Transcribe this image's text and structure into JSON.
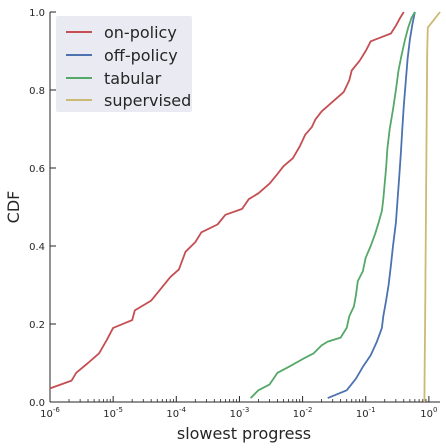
{
  "chart_data": {
    "type": "line",
    "title": "",
    "xlabel": "slowest progress",
    "ylabel": "CDF",
    "xscale": "log",
    "xlim": [
      1e-06,
      1.5
    ],
    "ylim": [
      0,
      1
    ],
    "grid": false,
    "legend_position": "top-left",
    "x_ticks": [
      {
        "value": 1e-06,
        "base": "10",
        "exp": "-6"
      },
      {
        "value": 1e-05,
        "base": "10",
        "exp": "-5"
      },
      {
        "value": 0.0001,
        "base": "10",
        "exp": "-4"
      },
      {
        "value": 0.001,
        "base": "10",
        "exp": "-3"
      },
      {
        "value": 0.01,
        "base": "10",
        "exp": "-2"
      },
      {
        "value": 0.1,
        "base": "10",
        "exp": "-1"
      },
      {
        "value": 1,
        "base": "10",
        "exp": "0"
      }
    ],
    "y_ticks": [
      {
        "value": 0.0,
        "label": "0.0"
      },
      {
        "value": 0.2,
        "label": "0.2"
      },
      {
        "value": 0.4,
        "label": "0.4"
      },
      {
        "value": 0.6,
        "label": "0.6"
      },
      {
        "value": 0.8,
        "label": "0.8"
      },
      {
        "value": 1.0,
        "label": "1.0"
      }
    ],
    "series": [
      {
        "name": "on-policy",
        "color": "#c44e52",
        "points": [
          [
            1e-06,
            0.035
          ],
          [
            2.2e-06,
            0.055
          ],
          [
            2.6e-06,
            0.075
          ],
          [
            4e-06,
            0.1
          ],
          [
            6e-06,
            0.125
          ],
          [
            8e-06,
            0.16
          ],
          [
            1e-05,
            0.19
          ],
          [
            2e-05,
            0.21
          ],
          [
            2.2e-05,
            0.235
          ],
          [
            4e-05,
            0.26
          ],
          [
            6e-05,
            0.295
          ],
          [
            8e-05,
            0.32
          ],
          [
            0.00011,
            0.34
          ],
          [
            0.00014,
            0.385
          ],
          [
            0.0002,
            0.41
          ],
          [
            0.00025,
            0.435
          ],
          [
            0.00045,
            0.455
          ],
          [
            0.0006,
            0.48
          ],
          [
            0.0011,
            0.495
          ],
          [
            0.0014,
            0.52
          ],
          [
            0.002,
            0.535
          ],
          [
            0.003,
            0.56
          ],
          [
            0.004,
            0.585
          ],
          [
            0.005,
            0.605
          ],
          [
            0.007,
            0.625
          ],
          [
            0.009,
            0.655
          ],
          [
            0.011,
            0.685
          ],
          [
            0.014,
            0.705
          ],
          [
            0.016,
            0.725
          ],
          [
            0.02,
            0.745
          ],
          [
            0.03,
            0.77
          ],
          [
            0.045,
            0.795
          ],
          [
            0.055,
            0.825
          ],
          [
            0.06,
            0.85
          ],
          [
            0.08,
            0.875
          ],
          [
            0.1,
            0.9
          ],
          [
            0.12,
            0.925
          ],
          [
            0.25,
            0.945
          ],
          [
            0.3,
            0.965
          ],
          [
            0.35,
            0.985
          ],
          [
            0.4,
            1.0
          ]
        ]
      },
      {
        "name": "off-policy",
        "color": "#4c72b0",
        "points": [
          [
            0.025,
            0.01
          ],
          [
            0.05,
            0.03
          ],
          [
            0.07,
            0.06
          ],
          [
            0.09,
            0.09
          ],
          [
            0.12,
            0.12
          ],
          [
            0.15,
            0.155
          ],
          [
            0.18,
            0.19
          ],
          [
            0.19,
            0.22
          ],
          [
            0.21,
            0.26
          ],
          [
            0.23,
            0.3
          ],
          [
            0.25,
            0.35
          ],
          [
            0.27,
            0.4
          ],
          [
            0.3,
            0.46
          ],
          [
            0.32,
            0.52
          ],
          [
            0.34,
            0.58
          ],
          [
            0.36,
            0.64
          ],
          [
            0.38,
            0.7
          ],
          [
            0.4,
            0.76
          ],
          [
            0.43,
            0.82
          ],
          [
            0.46,
            0.88
          ],
          [
            0.5,
            0.93
          ],
          [
            0.55,
            0.97
          ],
          [
            0.6,
            1.0
          ]
        ]
      },
      {
        "name": "tabular",
        "color": "#55a868",
        "points": [
          [
            0.0015,
            0.01
          ],
          [
            0.002,
            0.03
          ],
          [
            0.003,
            0.045
          ],
          [
            0.004,
            0.075
          ],
          [
            0.006,
            0.09
          ],
          [
            0.01,
            0.11
          ],
          [
            0.015,
            0.125
          ],
          [
            0.02,
            0.145
          ],
          [
            0.025,
            0.155
          ],
          [
            0.04,
            0.165
          ],
          [
            0.05,
            0.19
          ],
          [
            0.055,
            0.22
          ],
          [
            0.065,
            0.245
          ],
          [
            0.07,
            0.275
          ],
          [
            0.075,
            0.31
          ],
          [
            0.09,
            0.335
          ],
          [
            0.1,
            0.37
          ],
          [
            0.12,
            0.4
          ],
          [
            0.14,
            0.43
          ],
          [
            0.16,
            0.46
          ],
          [
            0.18,
            0.49
          ],
          [
            0.19,
            0.52
          ],
          [
            0.2,
            0.56
          ],
          [
            0.21,
            0.6
          ],
          [
            0.22,
            0.65
          ],
          [
            0.24,
            0.7
          ],
          [
            0.27,
            0.75
          ],
          [
            0.3,
            0.8
          ],
          [
            0.33,
            0.85
          ],
          [
            0.37,
            0.89
          ],
          [
            0.42,
            0.93
          ],
          [
            0.47,
            0.96
          ],
          [
            0.53,
            0.985
          ],
          [
            0.6,
            1.0
          ]
        ]
      },
      {
        "name": "supervised",
        "color": "#ccb974",
        "points": [
          [
            0.85,
            0.0
          ],
          [
            0.86,
            0.1
          ],
          [
            0.87,
            0.2
          ],
          [
            0.88,
            0.3
          ],
          [
            0.89,
            0.4
          ],
          [
            0.9,
            0.5
          ],
          [
            0.91,
            0.6
          ],
          [
            0.92,
            0.7
          ],
          [
            0.93,
            0.8
          ],
          [
            0.94,
            0.9
          ],
          [
            0.96,
            0.96
          ],
          [
            1.2,
            0.98
          ],
          [
            1.5,
            1.0
          ]
        ]
      }
    ]
  }
}
